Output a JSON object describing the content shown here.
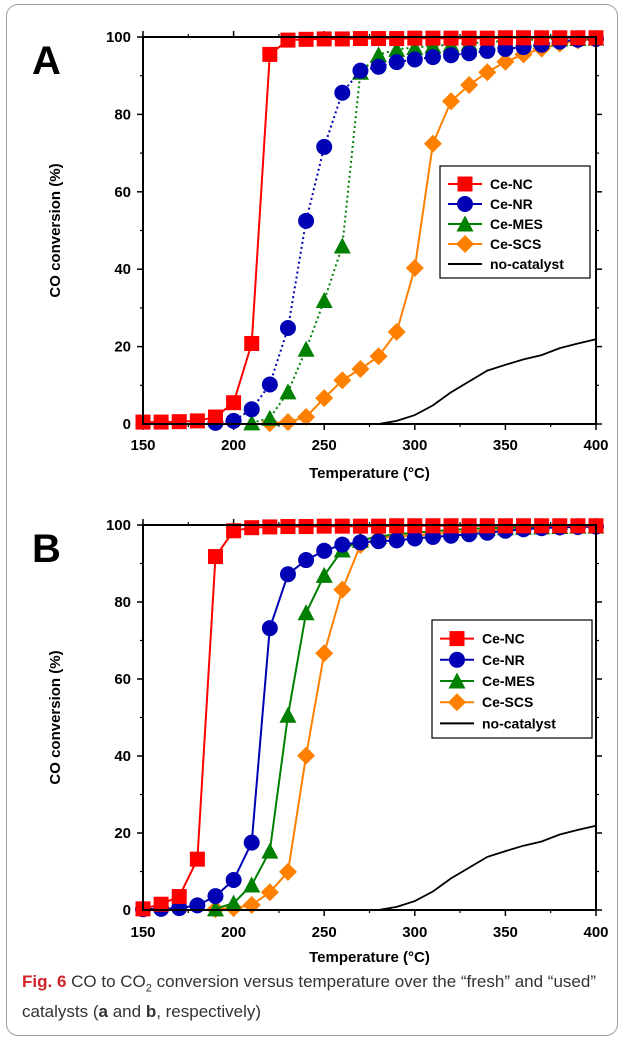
{
  "chart_data": [
    {
      "panel": "A",
      "type": "line",
      "xlabel": "Temperature (°C)",
      "ylabel": "CO conversion (%)",
      "xlim": [
        150,
        400
      ],
      "ylim": [
        0,
        100
      ],
      "xticks": [
        150,
        200,
        250,
        300,
        350,
        400
      ],
      "yticks": [
        0,
        20,
        40,
        60,
        80,
        100
      ],
      "grid": false,
      "legend_position": "right-middle",
      "series": [
        {
          "name": "Ce-NC",
          "color": "#ff0000",
          "marker": "square",
          "dash": "solid",
          "x": [
            150,
            160,
            170,
            180,
            190,
            200,
            210,
            220,
            230,
            240,
            250,
            260,
            270,
            280,
            290,
            300,
            310,
            320,
            330,
            340,
            350,
            360,
            370,
            380,
            390,
            400
          ],
          "y": [
            0.5,
            0.5,
            0.6,
            0.8,
            1.8,
            5.5,
            20.8,
            95.5,
            99.2,
            99.4,
            99.5,
            99.5,
            99.6,
            99.6,
            99.6,
            99.7,
            99.7,
            99.7,
            99.7,
            99.7,
            99.8,
            99.8,
            99.8,
            99.8,
            99.8,
            99.8
          ]
        },
        {
          "name": "Ce-NR",
          "color": "#0000b4",
          "marker": "circle",
          "dash": "dot",
          "x": [
            190,
            200,
            210,
            220,
            230,
            240,
            250,
            260,
            270,
            280,
            290,
            300,
            310,
            320,
            330,
            340,
            350,
            360,
            370,
            380,
            390,
            400
          ],
          "y": [
            0.3,
            0.8,
            3.8,
            10.2,
            24.8,
            52.5,
            71.6,
            85.6,
            91.3,
            92.3,
            93.5,
            94.2,
            94.8,
            95.3,
            95.8,
            96.4,
            96.9,
            97.4,
            98.0,
            98.8,
            99.3,
            99.5
          ]
        },
        {
          "name": "Ce-MES",
          "color": "#008000",
          "marker": "triangle",
          "dash": "dot",
          "x": [
            210,
            220,
            230,
            240,
            250,
            260,
            270,
            280,
            290,
            300,
            310,
            320,
            330,
            340,
            350,
            360,
            370,
            380,
            390,
            400
          ],
          "y": [
            0.3,
            1.5,
            8.3,
            19.3,
            31.9,
            46.0,
            90.9,
            95.4,
            96.8,
            97.3,
            97.7,
            98.0,
            98.4,
            98.7,
            99.0,
            99.2,
            99.4,
            99.5,
            99.6,
            99.7
          ]
        },
        {
          "name": "Ce-SCS",
          "color": "#ff8000",
          "marker": "diamond",
          "dash": "solid",
          "x": [
            220,
            230,
            240,
            250,
            260,
            270,
            280,
            290,
            300,
            310,
            320,
            330,
            340,
            350,
            360,
            370,
            380,
            390,
            400
          ],
          "y": [
            0.2,
            0.5,
            1.8,
            6.7,
            11.3,
            14.2,
            17.5,
            23.8,
            40.3,
            72.4,
            83.4,
            87.6,
            90.9,
            93.6,
            95.5,
            97.0,
            98.3,
            99.1,
            99.4
          ]
        },
        {
          "name": "no-catalyst",
          "color": "#000000",
          "marker": "none",
          "dash": "solid",
          "x": [
            280,
            290,
            300,
            310,
            320,
            330,
            340,
            350,
            360,
            370,
            380,
            390,
            400
          ],
          "y": [
            0,
            0.8,
            2.3,
            4.8,
            8.2,
            11.0,
            13.8,
            15.3,
            16.7,
            17.8,
            19.6,
            20.8,
            21.9
          ]
        }
      ]
    },
    {
      "panel": "B",
      "type": "line",
      "xlabel": "Temperature (°C)",
      "ylabel": "CO conversion (%)",
      "xlim": [
        150,
        400
      ],
      "ylim": [
        0,
        100
      ],
      "xticks": [
        150,
        200,
        250,
        300,
        350,
        400
      ],
      "yticks": [
        0,
        20,
        40,
        60,
        80,
        100
      ],
      "grid": false,
      "legend_position": "right-middle",
      "series": [
        {
          "name": "Ce-NC",
          "color": "#ff0000",
          "marker": "square",
          "dash": "solid",
          "x": [
            150,
            160,
            170,
            180,
            190,
            200,
            210,
            220,
            230,
            240,
            250,
            260,
            270,
            280,
            290,
            300,
            310,
            320,
            330,
            340,
            350,
            360,
            370,
            380,
            390,
            400
          ],
          "y": [
            0.3,
            1.5,
            3.5,
            13.2,
            91.8,
            98.5,
            99.3,
            99.5,
            99.6,
            99.6,
            99.7,
            99.7,
            99.7,
            99.7,
            99.8,
            99.8,
            99.8,
            99.8,
            99.8,
            99.8,
            99.8,
            99.8,
            99.8,
            99.8,
            99.8,
            99.8
          ]
        },
        {
          "name": "Ce-NR",
          "color": "#0000b4",
          "marker": "circle",
          "dash": "solid",
          "x": [
            150,
            160,
            170,
            180,
            190,
            200,
            210,
            220,
            230,
            240,
            250,
            260,
            270,
            280,
            290,
            300,
            310,
            320,
            330,
            340,
            350,
            360,
            370,
            380,
            390,
            400
          ],
          "y": [
            0.2,
            0.3,
            0.5,
            1.2,
            3.6,
            7.8,
            17.5,
            73.2,
            87.2,
            90.9,
            93.3,
            94.9,
            95.5,
            95.8,
            96.0,
            96.5,
            96.9,
            97.2,
            97.6,
            98.0,
            98.5,
            98.9,
            99.2,
            99.4,
            99.5,
            99.6
          ]
        },
        {
          "name": "Ce-MES",
          "color": "#008000",
          "marker": "triangle",
          "dash": "solid",
          "x": [
            190,
            200,
            210,
            220,
            230,
            240,
            250,
            260,
            270,
            280,
            290,
            300,
            310,
            320,
            330,
            340,
            350,
            360,
            370,
            380,
            390,
            400
          ],
          "y": [
            0.3,
            1.8,
            6.5,
            15.3,
            50.6,
            77.2,
            86.9,
            93.5,
            96.0,
            97.0,
            97.6,
            98.0,
            98.4,
            98.7,
            99.0,
            99.2,
            99.3,
            99.4,
            99.5,
            99.6,
            99.7,
            99.7
          ]
        },
        {
          "name": "Ce-SCS",
          "color": "#ff8000",
          "marker": "diamond",
          "dash": "solid",
          "x": [
            190,
            200,
            210,
            220,
            230,
            240,
            250,
            260,
            270,
            280,
            290,
            300,
            310,
            320,
            330,
            340,
            350,
            360,
            370,
            380,
            390,
            400
          ],
          "y": [
            0.2,
            0.5,
            1.3,
            4.6,
            9.9,
            40.1,
            66.7,
            83.2,
            94.8,
            96.6,
            97.0,
            97.3,
            97.7,
            98.0,
            98.3,
            98.6,
            98.9,
            99.1,
            99.3,
            99.4,
            99.5,
            99.6
          ]
        },
        {
          "name": "no-catalyst",
          "color": "#000000",
          "marker": "none",
          "dash": "solid",
          "x": [
            280,
            290,
            300,
            310,
            320,
            330,
            340,
            350,
            360,
            370,
            380,
            390,
            400
          ],
          "y": [
            0,
            0.8,
            2.3,
            4.8,
            8.2,
            11.0,
            13.8,
            15.3,
            16.7,
            17.8,
            19.6,
            20.8,
            21.9
          ]
        }
      ]
    }
  ],
  "caption": {
    "label": "Fig. 6",
    "text_before": " CO to CO",
    "subscript": "2",
    "text_after": " conversion versus temperature over the “fresh” and “used” catalysts (",
    "bold_a": "a",
    "text_and": " and ",
    "bold_b": "b",
    "text_end": ", respectively)"
  }
}
